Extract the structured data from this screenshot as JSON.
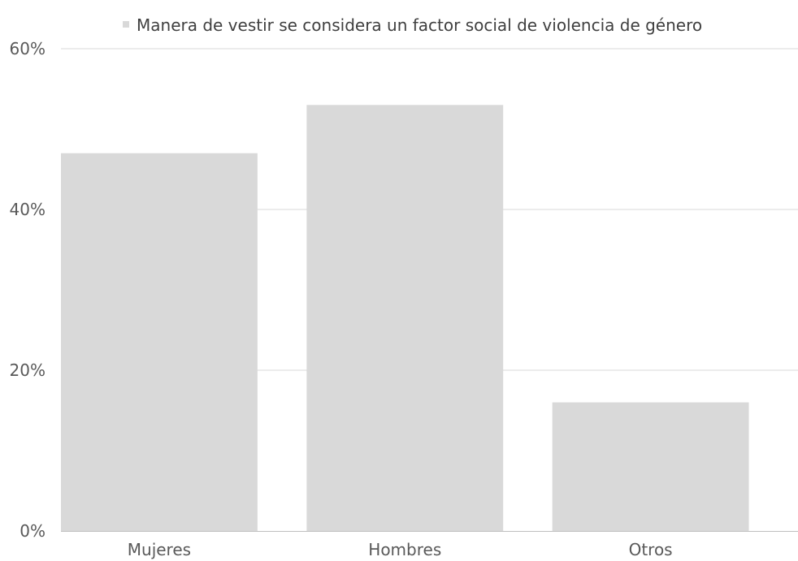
{
  "chart_data": {
    "type": "bar",
    "categories": [
      "Mujeres",
      "Hombres",
      "Otros"
    ],
    "series": [
      {
        "name": "Manera de vestir se considera un factor social de violencia de género",
        "values": [
          47,
          53,
          16
        ],
        "color": "#d9d9d9"
      }
    ],
    "ylim": [
      0,
      60
    ],
    "yticks": [
      "0%",
      "20%",
      "40%",
      "60%"
    ],
    "ytick_values": [
      0,
      20,
      40,
      60
    ],
    "grid": true,
    "legend_position": "top-center",
    "colors": {
      "bar": "#d9d9d9",
      "grid": "#d9d9d9",
      "axis": "#bfbfbf",
      "text": "#595959",
      "legend_text": "#404040"
    }
  }
}
